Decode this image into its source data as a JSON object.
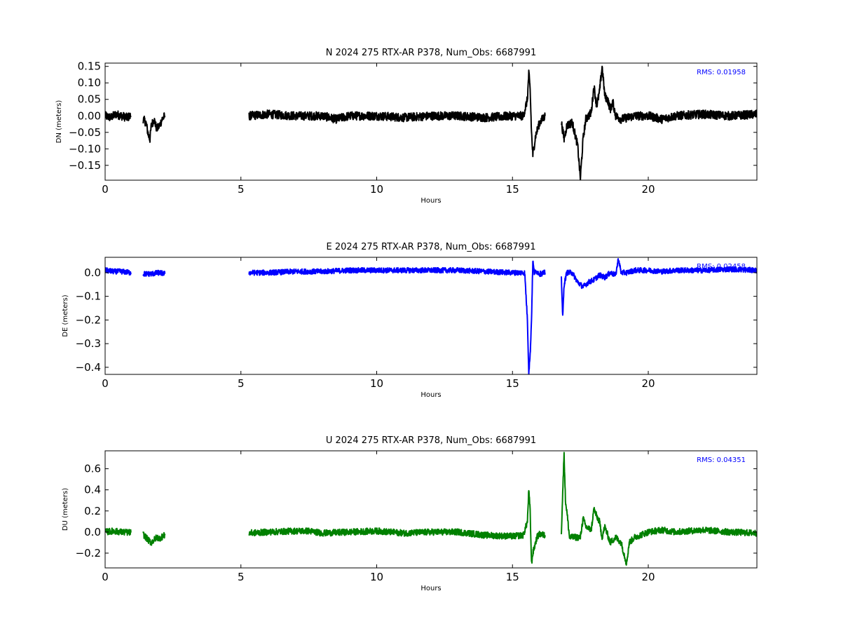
{
  "chart_data": [
    {
      "type": "line",
      "title": "N 2024 275 RTX-AR  P378, Num_Obs: 6687991",
      "xlabel": "Hours",
      "ylabel": "DN (meters)",
      "xlim": [
        0,
        24
      ],
      "ylim": [
        -0.195,
        0.16
      ],
      "xticks": [
        0,
        5,
        10,
        15,
        20
      ],
      "xtick_labels": [
        "0",
        "5",
        "10",
        "15",
        "20"
      ],
      "yticks": [
        -0.15,
        -0.1,
        -0.05,
        0.0,
        0.05,
        0.1,
        0.15
      ],
      "ytick_labels": [
        "−0.15",
        "−0.10",
        "−0.05",
        "0.00",
        "0.05",
        "0.10",
        "0.15"
      ],
      "annotation": "RMS:  0.01958",
      "grid": false,
      "series": [
        {
          "color": "#000000",
          "segments": [
            {
              "x": [
                0,
                0.2,
                0.4,
                0.6,
                0.8,
                0.95
              ],
              "y": [
                0.0,
                -0.005,
                0.005,
                0.0,
                -0.005,
                0.0
              ]
            },
            {
              "x": [
                1.4,
                1.5,
                1.6,
                1.65,
                1.7,
                1.8,
                1.9,
                2.0,
                2.1,
                2.2
              ],
              "y": [
                -0.01,
                -0.02,
                -0.06,
                -0.07,
                -0.03,
                -0.01,
                -0.04,
                -0.03,
                -0.01,
                0.0
              ]
            },
            {
              "x": [
                5.3,
                6.0,
                7.0,
                8.0,
                8.5,
                9.0,
                10.0,
                11.0,
                12.0,
                13.0,
                14.0,
                15.0,
                15.4,
                15.55,
                15.6,
                15.65,
                15.7,
                15.75,
                15.85,
                16.0,
                16.2
              ],
              "y": [
                0.0,
                0.005,
                0.0,
                0.0,
                -0.01,
                0.0,
                0.0,
                -0.005,
                0.0,
                0.0,
                -0.005,
                0.0,
                0.0,
                0.05,
                0.13,
                0.08,
                -0.05,
                -0.12,
                -0.06,
                -0.02,
                0.0
              ]
            },
            {
              "x": [
                16.8,
                16.9,
                17.0,
                17.2,
                17.4,
                17.5,
                17.6,
                17.7,
                17.8,
                17.9,
                18.0,
                18.1,
                18.2,
                18.3,
                18.4,
                18.5,
                18.6,
                18.7,
                18.8,
                19.0,
                19.5,
                20.0,
                20.5,
                21.0,
                22.0,
                23.0,
                24.0
              ],
              "y": [
                -0.02,
                -0.07,
                -0.03,
                -0.02,
                -0.09,
                -0.19,
                -0.07,
                -0.01,
                0.0,
                0.01,
                0.09,
                0.03,
                0.07,
                0.15,
                0.06,
                0.05,
                0.02,
                0.04,
                0.0,
                -0.01,
                0.0,
                0.0,
                -0.01,
                0.0,
                0.005,
                0.0,
                0.005
              ]
            }
          ],
          "noise": 0.013
        }
      ]
    },
    {
      "type": "line",
      "title": "E 2024 275 RTX-AR  P378, Num_Obs: 6687991",
      "xlabel": "Hours",
      "ylabel": "DE (meters)",
      "xlim": [
        0,
        24
      ],
      "ylim": [
        -0.43,
        0.065
      ],
      "xticks": [
        0,
        5,
        10,
        15,
        20
      ],
      "xtick_labels": [
        "0",
        "5",
        "10",
        "15",
        "20"
      ],
      "yticks": [
        -0.4,
        -0.3,
        -0.2,
        -0.1,
        0.0
      ],
      "ytick_labels": [
        "−0.4",
        "−0.3",
        "−0.2",
        "−0.1",
        "0.0"
      ],
      "annotation": "RMS:  0.02458",
      "grid": false,
      "series": [
        {
          "color": "#0000ff",
          "segments": [
            {
              "x": [
                0,
                0.3,
                0.6,
                0.95
              ],
              "y": [
                0.01,
                0.005,
                0.005,
                0.0
              ]
            },
            {
              "x": [
                1.4,
                1.7,
                2.0,
                2.2
              ],
              "y": [
                -0.005,
                -0.005,
                0.0,
                -0.005
              ]
            },
            {
              "x": [
                5.3,
                6.0,
                7.0,
                8.0,
                9.0,
                10.0,
                11.0,
                12.0,
                13.0,
                14.0,
                15.0,
                15.45,
                15.55,
                15.6,
                15.65,
                15.7,
                15.75,
                15.8,
                15.9,
                16.0,
                16.2
              ],
              "y": [
                0.0,
                0.0,
                0.005,
                0.005,
                0.01,
                0.01,
                0.01,
                0.01,
                0.01,
                0.005,
                0.0,
                0.0,
                -0.2,
                -0.42,
                -0.35,
                -0.2,
                0.05,
                0.0,
                0.005,
                -0.005,
                0.0
              ]
            },
            {
              "x": [
                16.8,
                16.85,
                16.9,
                17.0,
                17.2,
                17.4,
                17.6,
                17.8,
                18.0,
                18.2,
                18.4,
                18.6,
                18.8,
                18.9,
                19.0,
                19.2,
                19.5,
                20.0,
                20.5,
                21.0,
                22.0,
                23.0,
                24.0
              ],
              "y": [
                -0.02,
                -0.19,
                -0.05,
                0.0,
                0.0,
                -0.04,
                -0.06,
                -0.04,
                -0.03,
                -0.01,
                -0.02,
                0.0,
                -0.01,
                0.06,
                0.0,
                0.0,
                0.01,
                0.01,
                0.005,
                0.01,
                0.01,
                0.015,
                0.01
              ]
            }
          ],
          "noise": 0.011
        }
      ]
    },
    {
      "type": "line",
      "title": "U 2024 275 RTX-AR  P378, Num_Obs: 6687991",
      "xlabel": "Hours",
      "ylabel": "DU (meters)",
      "xlim": [
        0,
        24
      ],
      "ylim": [
        -0.34,
        0.77
      ],
      "xticks": [
        0,
        5,
        10,
        15,
        20
      ],
      "xtick_labels": [
        "0",
        "5",
        "10",
        "15",
        "20"
      ],
      "yticks": [
        -0.2,
        0.0,
        0.2,
        0.4,
        0.6
      ],
      "ytick_labels": [
        "−0.2",
        "0.0",
        "0.2",
        "0.4",
        "0.6"
      ],
      "annotation": "RMS:  0.04351",
      "grid": false,
      "series": [
        {
          "color": "#008000",
          "segments": [
            {
              "x": [
                0,
                0.3,
                0.6,
                0.95
              ],
              "y": [
                0.0,
                0.01,
                0.0,
                -0.005
              ]
            },
            {
              "x": [
                1.4,
                1.6,
                1.7,
                1.9,
                2.0,
                2.2
              ],
              "y": [
                -0.02,
                -0.08,
                -0.1,
                -0.05,
                -0.06,
                -0.03
              ]
            },
            {
              "x": [
                5.3,
                6.0,
                7.0,
                7.5,
                8.0,
                9.0,
                10.0,
                11.0,
                12.0,
                13.0,
                14.0,
                15.0,
                15.4,
                15.55,
                15.6,
                15.65,
                15.7,
                15.75,
                15.9,
                16.0,
                16.2
              ],
              "y": [
                -0.01,
                0.0,
                0.01,
                0.01,
                -0.01,
                0.0,
                0.01,
                -0.01,
                0.0,
                0.0,
                -0.03,
                -0.04,
                -0.03,
                0.1,
                0.4,
                0.2,
                -0.3,
                -0.2,
                -0.05,
                -0.02,
                -0.03
              ]
            },
            {
              "x": [
                16.8,
                16.9,
                16.95,
                17.0,
                17.1,
                17.3,
                17.5,
                17.6,
                17.7,
                17.9,
                18.0,
                18.1,
                18.2,
                18.3,
                18.4,
                18.6,
                18.8,
                19.0,
                19.2,
                19.3,
                19.5,
                20.0,
                20.5,
                21.0,
                22.0,
                23.0,
                24.0
              ],
              "y": [
                0.0,
                0.75,
                0.3,
                0.2,
                -0.05,
                -0.05,
                -0.05,
                0.13,
                0.05,
                0.02,
                0.22,
                0.15,
                0.1,
                -0.05,
                0.05,
                -0.1,
                -0.05,
                -0.1,
                -0.3,
                -0.1,
                -0.05,
                0.0,
                0.02,
                0.0,
                0.02,
                0.0,
                -0.01
              ]
            }
          ],
          "noise": 0.03
        }
      ]
    }
  ]
}
